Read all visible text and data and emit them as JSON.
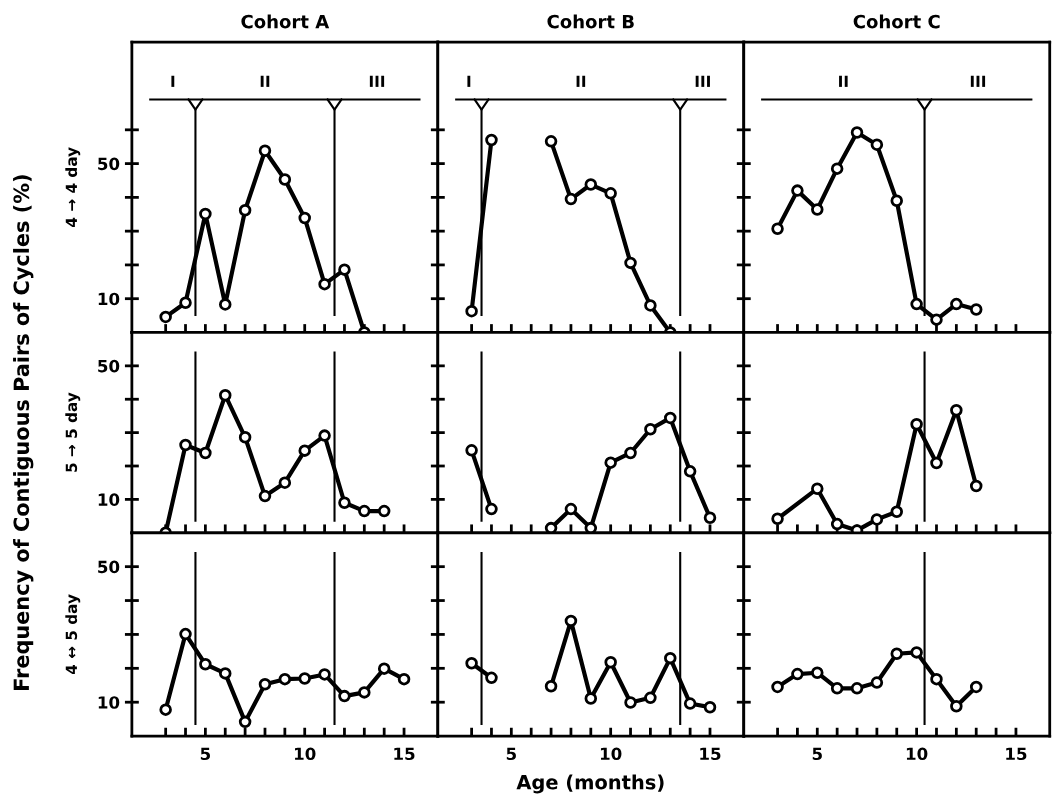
{
  "chart_data": [
    {
      "type": "line",
      "title": "Cohort A",
      "ylabel": "4 → 4 day",
      "tick_labels": "y",
      "marker": "circle",
      "color": "#000000",
      "x": [
        3,
        4,
        5,
        6,
        7,
        8,
        9,
        10,
        11,
        12,
        13
      ],
      "values": [
        4.6,
        8.8,
        35.1,
        8.3,
        36.2,
        53.8,
        45.3,
        33.9,
        14.3,
        18.6,
        0
      ],
      "xlim": [
        1.3,
        16.7
      ],
      "ylim": [
        0,
        86
      ],
      "xticks": [
        {
          "value": 3,
          "label": null
        },
        {
          "value": 4,
          "label": null
        },
        5,
        {
          "value": 6,
          "label": null
        },
        {
          "value": 7,
          "label": null
        },
        {
          "value": 8,
          "label": null
        },
        {
          "value": 9,
          "label": null
        },
        10,
        {
          "value": 11,
          "label": null
        },
        {
          "value": 12,
          "label": null
        },
        {
          "value": 13,
          "label": null
        },
        {
          "value": 14,
          "label": null
        },
        15
      ],
      "yticks": [
        10,
        {
          "value": 20,
          "label": null
        },
        {
          "value": 30,
          "label": null
        },
        {
          "value": 40,
          "label": null
        },
        50,
        {
          "value": 60,
          "label": null
        }
      ],
      "ref_lines": [
        {
          "axis": "x",
          "value": 4.5
        },
        {
          "axis": "x",
          "value": 11.5
        },
        {
          "axis": "y",
          "value": 69
        }
      ],
      "annotations": [
        "I",
        "II",
        "III"
      ]
    },
    {
      "type": "line",
      "title": "Cohort B",
      "tick_labels": false,
      "marker": "circle",
      "color": "#000000",
      "x": [
        3,
        4,
        5,
        6,
        7,
        8,
        9,
        10,
        11,
        12,
        13
      ],
      "values": [
        6.3,
        57.0,
        null,
        null,
        56.6,
        39.5,
        43.8,
        41.2,
        20.6,
        8.0,
        0
      ],
      "xlim": [
        1.3,
        16.7
      ],
      "ylim": [
        0,
        86
      ],
      "xticks": [
        {
          "value": 3,
          "label": null
        },
        {
          "value": 4,
          "label": null
        },
        5,
        {
          "value": 6,
          "label": null
        },
        {
          "value": 7,
          "label": null
        },
        {
          "value": 8,
          "label": null
        },
        {
          "value": 9,
          "label": null
        },
        10,
        {
          "value": 11,
          "label": null
        },
        {
          "value": 12,
          "label": null
        },
        {
          "value": 13,
          "label": null
        },
        {
          "value": 14,
          "label": null
        },
        15
      ],
      "yticks": [
        10,
        {
          "value": 20,
          "label": null
        },
        {
          "value": 30,
          "label": null
        },
        {
          "value": 40,
          "label": null
        },
        50,
        {
          "value": 60,
          "label": null
        }
      ],
      "ref_lines": [
        {
          "axis": "x",
          "value": 3.5
        },
        {
          "axis": "x",
          "value": 13.5
        },
        {
          "axis": "y",
          "value": 69
        }
      ],
      "annotations": [
        "I",
        "II",
        "III"
      ]
    },
    {
      "type": "line",
      "title": "Cohort C",
      "tick_labels": false,
      "marker": "circle",
      "color": "#000000",
      "x": [
        3,
        4,
        5,
        6,
        7,
        8,
        9,
        10,
        11,
        12,
        13
      ],
      "values": [
        30.7,
        42.0,
        36.4,
        48.5,
        59.2,
        55.6,
        39.0,
        8.4,
        3.8,
        8.4,
        6.8
      ],
      "xlim": [
        1.3,
        16.7
      ],
      "ylim": [
        0,
        86
      ],
      "xticks": [
        {
          "value": 3,
          "label": null
        },
        {
          "value": 4,
          "label": null
        },
        5,
        {
          "value": 6,
          "label": null
        },
        {
          "value": 7,
          "label": null
        },
        {
          "value": 8,
          "label": null
        },
        {
          "value": 9,
          "label": null
        },
        10,
        {
          "value": 11,
          "label": null
        },
        {
          "value": 12,
          "label": null
        },
        {
          "value": 13,
          "label": null
        },
        {
          "value": 14,
          "label": null
        },
        15
      ],
      "yticks": [
        10,
        {
          "value": 20,
          "label": null
        },
        {
          "value": 30,
          "label": null
        },
        {
          "value": 40,
          "label": null
        },
        50,
        {
          "value": 60,
          "label": null
        }
      ],
      "ref_lines": [
        {
          "axis": "x",
          "value": 10.4
        },
        {
          "axis": "y",
          "value": 69
        }
      ],
      "annotations": [
        "II",
        "III"
      ]
    },
    {
      "type": "line",
      "ylabel": "5 → 5 day",
      "tick_labels": "y",
      "marker": "circle",
      "color": "#000000",
      "annotations": [
        "Frequency of Contiguous Pairs of Cycles (%)"
      ],
      "x": [
        3,
        4,
        5,
        6,
        7,
        8,
        9,
        10,
        11,
        12,
        13,
        14
      ],
      "values": [
        0,
        26.3,
        23.9,
        41.2,
        28.6,
        11.0,
        15.0,
        24.6,
        29.1,
        9.0,
        6.5,
        6.5
      ],
      "xlim": [
        1.3,
        16.7
      ],
      "ylim": [
        0,
        60
      ],
      "xticks": [
        {
          "value": 3,
          "label": null
        },
        {
          "value": 4,
          "label": null
        },
        5,
        {
          "value": 6,
          "label": null
        },
        {
          "value": 7,
          "label": null
        },
        {
          "value": 8,
          "label": null
        },
        {
          "value": 9,
          "label": null
        },
        10,
        {
          "value": 11,
          "label": null
        },
        {
          "value": 12,
          "label": null
        },
        {
          "value": 13,
          "label": null
        },
        {
          "value": 14,
          "label": null
        },
        15
      ],
      "yticks": [
        10,
        {
          "value": 20,
          "label": null
        },
        {
          "value": 30,
          "label": null
        },
        {
          "value": 40,
          "label": null
        },
        50
      ],
      "ref_lines": [
        {
          "axis": "x",
          "value": 4.5
        },
        {
          "axis": "x",
          "value": 11.5
        }
      ]
    },
    {
      "type": "line",
      "tick_labels": false,
      "marker": "circle",
      "color": "#000000",
      "x": [
        3,
        4,
        5,
        6,
        7,
        8,
        9,
        10,
        11,
        12,
        13,
        14,
        15
      ],
      "values": [
        24.7,
        7.1,
        null,
        null,
        1.4,
        7.1,
        1.4,
        21.0,
        23.9,
        31.0,
        34.4,
        18.4,
        4.5
      ],
      "xlim": [
        1.3,
        16.7
      ],
      "ylim": [
        0,
        60
      ],
      "xticks": [
        {
          "value": 3,
          "label": null
        },
        {
          "value": 4,
          "label": null
        },
        5,
        {
          "value": 6,
          "label": null
        },
        {
          "value": 7,
          "label": null
        },
        {
          "value": 8,
          "label": null
        },
        {
          "value": 9,
          "label": null
        },
        10,
        {
          "value": 11,
          "label": null
        },
        {
          "value": 12,
          "label": null
        },
        {
          "value": 13,
          "label": null
        },
        {
          "value": 14,
          "label": null
        },
        15
      ],
      "yticks": [
        10,
        {
          "value": 20,
          "label": null
        },
        {
          "value": 30,
          "label": null
        },
        {
          "value": 40,
          "label": null
        },
        50
      ],
      "ref_lines": [
        {
          "axis": "x",
          "value": 3.5
        },
        {
          "axis": "x",
          "value": 13.5
        }
      ]
    },
    {
      "type": "line",
      "tick_labels": false,
      "marker": "circle",
      "color": "#000000",
      "x": [
        3,
        5,
        6,
        7,
        8,
        9,
        10,
        11,
        12,
        13
      ],
      "values": [
        4.2,
        13.2,
        2.6,
        0.7,
        4.0,
        6.3,
        32.5,
        20.9,
        36.7,
        14.0
      ],
      "xlim": [
        1.3,
        16.7
      ],
      "ylim": [
        0,
        60
      ],
      "xticks": [
        {
          "value": 3,
          "label": null
        },
        {
          "value": 4,
          "label": null
        },
        5,
        {
          "value": 6,
          "label": null
        },
        {
          "value": 7,
          "label": null
        },
        {
          "value": 8,
          "label": null
        },
        {
          "value": 9,
          "label": null
        },
        10,
        {
          "value": 11,
          "label": null
        },
        {
          "value": 12,
          "label": null
        },
        {
          "value": 13,
          "label": null
        },
        {
          "value": 14,
          "label": null
        },
        15
      ],
      "yticks": [
        10,
        {
          "value": 20,
          "label": null
        },
        {
          "value": 30,
          "label": null
        },
        {
          "value": 40,
          "label": null
        },
        50
      ],
      "ref_lines": [
        {
          "axis": "x",
          "value": 10.4
        }
      ]
    },
    {
      "type": "line",
      "ylabel": "4 ↔ 5 day",
      "marker": "circle",
      "color": "#000000",
      "x": [
        3,
        4,
        5,
        6,
        7,
        8,
        9,
        10,
        11,
        12,
        13,
        14,
        15
      ],
      "values": [
        7.8,
        30.1,
        21.2,
        18.5,
        4.2,
        15.3,
        16.8,
        17.0,
        18.2,
        11.8,
        12.9,
        19.9,
        16.8
      ],
      "xlim": [
        1.3,
        16.7
      ],
      "ylim": [
        0,
        60
      ],
      "xticks": [
        {
          "value": 3,
          "label": null
        },
        {
          "value": 4,
          "label": null
        },
        5,
        {
          "value": 6,
          "label": null
        },
        {
          "value": 7,
          "label": null
        },
        {
          "value": 8,
          "label": null
        },
        {
          "value": 9,
          "label": null
        },
        10,
        {
          "value": 11,
          "label": null
        },
        {
          "value": 12,
          "label": null
        },
        {
          "value": 13,
          "label": null
        },
        {
          "value": 14,
          "label": null
        },
        15
      ],
      "yticks": [
        10,
        {
          "value": 20,
          "label": null
        },
        {
          "value": 30,
          "label": null
        },
        {
          "value": 40,
          "label": null
        },
        50
      ],
      "ref_lines": [
        {
          "axis": "x",
          "value": 4.5
        },
        {
          "axis": "x",
          "value": 11.5
        }
      ]
    },
    {
      "type": "line",
      "xlabel": "Age (months)",
      "tick_labels": "x",
      "marker": "circle",
      "color": "#000000",
      "x": [
        3,
        4,
        5,
        6,
        7,
        8,
        9,
        10,
        11,
        12,
        13,
        14,
        15
      ],
      "values": [
        21.5,
        17.2,
        null,
        null,
        14.7,
        34.0,
        11.1,
        21.8,
        9.9,
        11.3,
        23.0,
        9.6,
        8.5
      ],
      "xlim": [
        1.3,
        16.7
      ],
      "ylim": [
        0,
        60
      ],
      "xticks": [
        {
          "value": 3,
          "label": null
        },
        {
          "value": 4,
          "label": null
        },
        5,
        {
          "value": 6,
          "label": null
        },
        {
          "value": 7,
          "label": null
        },
        {
          "value": 8,
          "label": null
        },
        {
          "value": 9,
          "label": null
        },
        10,
        {
          "value": 11,
          "label": null
        },
        {
          "value": 12,
          "label": null
        },
        {
          "value": 13,
          "label": null
        },
        {
          "value": 14,
          "label": null
        },
        15
      ],
      "yticks": [
        10,
        {
          "value": 20,
          "label": null
        },
        {
          "value": 30,
          "label": null
        },
        {
          "value": 40,
          "label": null
        },
        50
      ],
      "ref_lines": [
        {
          "axis": "x",
          "value": 3.5
        },
        {
          "axis": "x",
          "value": 13.5
        }
      ]
    },
    {
      "type": "line",
      "tick_labels": "x",
      "marker": "circle",
      "color": "#000000",
      "x": [
        3,
        4,
        5,
        6,
        7,
        8,
        9,
        10,
        11,
        12,
        13
      ],
      "values": [
        14.5,
        18.3,
        18.7,
        14.1,
        14.1,
        15.8,
        24.3,
        24.7,
        16.8,
        8.8,
        14.5
      ],
      "xlim": [
        1.3,
        16.7
      ],
      "ylim": [
        0,
        60
      ],
      "xticks": [
        {
          "value": 3,
          "label": null
        },
        {
          "value": 4,
          "label": null
        },
        5,
        {
          "value": 6,
          "label": null
        },
        {
          "value": 7,
          "label": null
        },
        {
          "value": 8,
          "label": null
        },
        {
          "value": 9,
          "label": null
        },
        10,
        {
          "value": 11,
          "label": null
        },
        {
          "value": 12,
          "label": null
        },
        {
          "value": 13,
          "label": null
        },
        {
          "value": 14,
          "label": null
        },
        15
      ],
      "yticks": [
        10,
        {
          "value": 20,
          "label": null
        },
        {
          "value": 30,
          "label": null
        },
        {
          "value": 40,
          "label": null
        },
        50
      ],
      "ref_lines": [
        {
          "axis": "x",
          "value": 10.4
        }
      ]
    }
  ]
}
